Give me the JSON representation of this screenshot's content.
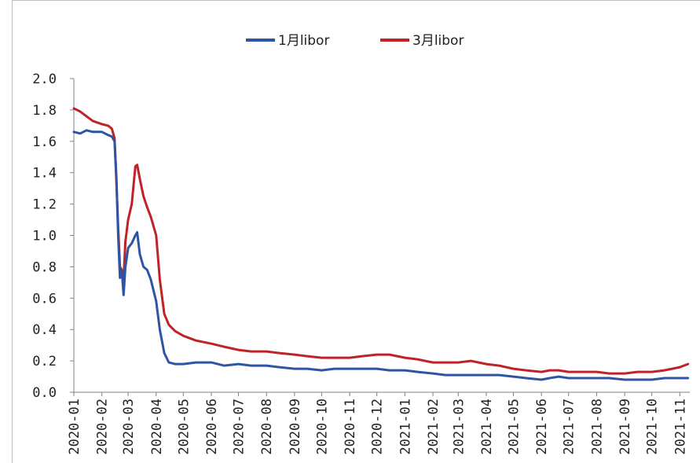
{
  "chart_data": {
    "type": "line",
    "title": "",
    "xlabel": "",
    "ylabel": "",
    "ylim": [
      0,
      2.0
    ],
    "y_ticks": [
      "0.0",
      "0.2",
      "0.4",
      "0.6",
      "0.8",
      "1.0",
      "1.2",
      "1.4",
      "1.6",
      "1.8",
      "2.0"
    ],
    "x_ticks": [
      "2020-01",
      "2020-02",
      "2020-03",
      "2020-04",
      "2020-05",
      "2020-06",
      "2020-07",
      "2020-08",
      "2020-09",
      "2020-10",
      "2020-11",
      "2020-12",
      "2021-01",
      "2021-02",
      "2021-03",
      "2021-04",
      "2021-05",
      "2021-06",
      "2021-07",
      "2021-08",
      "2021-09",
      "2021-10",
      "2021-11"
    ],
    "grid": false,
    "legend_position": "top",
    "series": [
      {
        "name": "1月libor",
        "color": "#2e55a3",
        "points": [
          [
            "2020-01-01",
            1.66
          ],
          [
            "2020-01-08",
            1.65
          ],
          [
            "2020-01-15",
            1.67
          ],
          [
            "2020-01-22",
            1.66
          ],
          [
            "2020-02-01",
            1.66
          ],
          [
            "2020-02-08",
            1.64
          ],
          [
            "2020-02-12",
            1.63
          ],
          [
            "2020-02-15",
            1.6
          ],
          [
            "2020-02-17",
            1.38
          ],
          [
            "2020-02-19",
            1.0
          ],
          [
            "2020-02-21",
            0.73
          ],
          [
            "2020-02-23",
            0.78
          ],
          [
            "2020-02-25",
            0.62
          ],
          [
            "2020-02-27",
            0.8
          ],
          [
            "2020-03-01",
            0.92
          ],
          [
            "2020-03-05",
            0.95
          ],
          [
            "2020-03-09",
            1.0
          ],
          [
            "2020-03-11",
            1.02
          ],
          [
            "2020-03-14",
            0.88
          ],
          [
            "2020-03-18",
            0.8
          ],
          [
            "2020-03-22",
            0.78
          ],
          [
            "2020-03-26",
            0.72
          ],
          [
            "2020-04-01",
            0.58
          ],
          [
            "2020-04-05",
            0.4
          ],
          [
            "2020-04-10",
            0.25
          ],
          [
            "2020-04-15",
            0.19
          ],
          [
            "2020-04-22",
            0.18
          ],
          [
            "2020-05-01",
            0.18
          ],
          [
            "2020-05-15",
            0.19
          ],
          [
            "2020-06-01",
            0.19
          ],
          [
            "2020-06-15",
            0.17
          ],
          [
            "2020-07-01",
            0.18
          ],
          [
            "2020-07-15",
            0.17
          ],
          [
            "2020-08-01",
            0.17
          ],
          [
            "2020-08-15",
            0.16
          ],
          [
            "2020-09-01",
            0.15
          ],
          [
            "2020-09-15",
            0.15
          ],
          [
            "2020-10-01",
            0.14
          ],
          [
            "2020-10-15",
            0.15
          ],
          [
            "2020-11-01",
            0.15
          ],
          [
            "2020-11-15",
            0.15
          ],
          [
            "2020-12-01",
            0.15
          ],
          [
            "2020-12-15",
            0.14
          ],
          [
            "2021-01-01",
            0.14
          ],
          [
            "2021-01-15",
            0.13
          ],
          [
            "2021-02-01",
            0.12
          ],
          [
            "2021-02-15",
            0.11
          ],
          [
            "2021-03-01",
            0.11
          ],
          [
            "2021-03-15",
            0.11
          ],
          [
            "2021-04-01",
            0.11
          ],
          [
            "2021-04-15",
            0.11
          ],
          [
            "2021-05-01",
            0.1
          ],
          [
            "2021-05-15",
            0.09
          ],
          [
            "2021-06-01",
            0.08
          ],
          [
            "2021-06-10",
            0.09
          ],
          [
            "2021-06-20",
            0.1
          ],
          [
            "2021-07-01",
            0.09
          ],
          [
            "2021-07-15",
            0.09
          ],
          [
            "2021-08-01",
            0.09
          ],
          [
            "2021-08-15",
            0.09
          ],
          [
            "2021-09-01",
            0.08
          ],
          [
            "2021-09-15",
            0.08
          ],
          [
            "2021-10-01",
            0.08
          ],
          [
            "2021-10-15",
            0.09
          ],
          [
            "2021-11-01",
            0.09
          ],
          [
            "2021-11-10",
            0.09
          ]
        ]
      },
      {
        "name": "3月libor",
        "color": "#c02327",
        "points": [
          [
            "2020-01-01",
            1.81
          ],
          [
            "2020-01-08",
            1.79
          ],
          [
            "2020-01-15",
            1.76
          ],
          [
            "2020-01-22",
            1.73
          ],
          [
            "2020-02-01",
            1.71
          ],
          [
            "2020-02-08",
            1.7
          ],
          [
            "2020-02-12",
            1.68
          ],
          [
            "2020-02-15",
            1.62
          ],
          [
            "2020-02-17",
            1.35
          ],
          [
            "2020-02-19",
            1.05
          ],
          [
            "2020-02-21",
            0.8
          ],
          [
            "2020-02-23",
            0.78
          ],
          [
            "2020-02-25",
            0.72
          ],
          [
            "2020-02-27",
            0.96
          ],
          [
            "2020-03-01",
            1.1
          ],
          [
            "2020-03-05",
            1.2
          ],
          [
            "2020-03-09",
            1.44
          ],
          [
            "2020-03-11",
            1.45
          ],
          [
            "2020-03-14",
            1.36
          ],
          [
            "2020-03-18",
            1.25
          ],
          [
            "2020-03-22",
            1.18
          ],
          [
            "2020-03-26",
            1.12
          ],
          [
            "2020-04-01",
            1.0
          ],
          [
            "2020-04-05",
            0.72
          ],
          [
            "2020-04-10",
            0.5
          ],
          [
            "2020-04-15",
            0.43
          ],
          [
            "2020-04-22",
            0.39
          ],
          [
            "2020-05-01",
            0.36
          ],
          [
            "2020-05-15",
            0.33
          ],
          [
            "2020-06-01",
            0.31
          ],
          [
            "2020-06-15",
            0.29
          ],
          [
            "2020-07-01",
            0.27
          ],
          [
            "2020-07-15",
            0.26
          ],
          [
            "2020-08-01",
            0.26
          ],
          [
            "2020-08-15",
            0.25
          ],
          [
            "2020-09-01",
            0.24
          ],
          [
            "2020-09-15",
            0.23
          ],
          [
            "2020-10-01",
            0.22
          ],
          [
            "2020-10-15",
            0.22
          ],
          [
            "2020-11-01",
            0.22
          ],
          [
            "2020-11-15",
            0.23
          ],
          [
            "2020-12-01",
            0.24
          ],
          [
            "2020-12-15",
            0.24
          ],
          [
            "2021-01-01",
            0.22
          ],
          [
            "2021-01-15",
            0.21
          ],
          [
            "2021-02-01",
            0.19
          ],
          [
            "2021-02-15",
            0.19
          ],
          [
            "2021-03-01",
            0.19
          ],
          [
            "2021-03-15",
            0.2
          ],
          [
            "2021-04-01",
            0.18
          ],
          [
            "2021-04-15",
            0.17
          ],
          [
            "2021-05-01",
            0.15
          ],
          [
            "2021-05-15",
            0.14
          ],
          [
            "2021-06-01",
            0.13
          ],
          [
            "2021-06-10",
            0.14
          ],
          [
            "2021-06-20",
            0.14
          ],
          [
            "2021-07-01",
            0.13
          ],
          [
            "2021-07-15",
            0.13
          ],
          [
            "2021-08-01",
            0.13
          ],
          [
            "2021-08-15",
            0.12
          ],
          [
            "2021-09-01",
            0.12
          ],
          [
            "2021-09-15",
            0.13
          ],
          [
            "2021-10-01",
            0.13
          ],
          [
            "2021-10-15",
            0.14
          ],
          [
            "2021-11-01",
            0.16
          ],
          [
            "2021-11-10",
            0.18
          ]
        ]
      }
    ]
  }
}
